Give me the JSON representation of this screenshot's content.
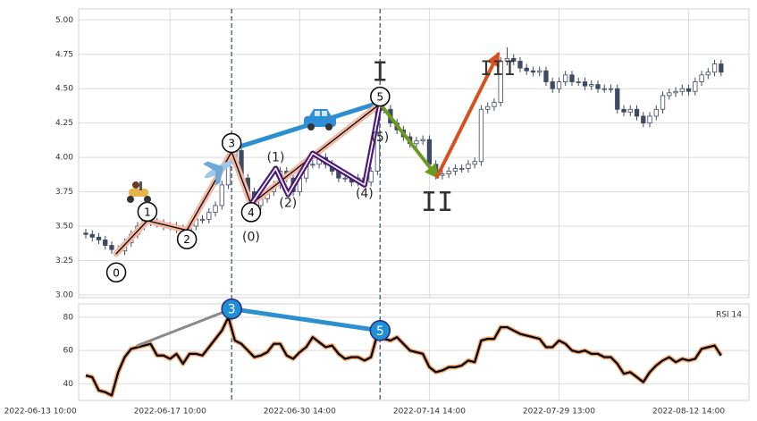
{
  "chart_data": {
    "type": "candlestick",
    "xlim": [
      -1.1,
      102.3
    ],
    "xticks": [
      {
        "value": -7,
        "label": "2022-06-13 10:00"
      },
      {
        "value": 13,
        "label": "2022-06-17 10:00"
      },
      {
        "value": 33,
        "label": "2022-06-30 14:00"
      },
      {
        "value": 53,
        "label": "2022-07-14 14:00"
      },
      {
        "value": 73,
        "label": "2022-07-29 13:00"
      },
      {
        "value": 93,
        "label": "2022-08-12 14:00"
      }
    ],
    "ylim": [
      2.98,
      5.08
    ],
    "yticks": [
      {
        "value": 3,
        "label": "3.00"
      },
      {
        "value": 3.25,
        "label": "3.25"
      },
      {
        "value": 3.5,
        "label": "3.50"
      },
      {
        "value": 3.75,
        "label": "3.75"
      },
      {
        "value": 4,
        "label": "4.00"
      },
      {
        "value": 4.25,
        "label": "4.25"
      },
      {
        "value": 4.5,
        "label": "4.50"
      },
      {
        "value": 4.75,
        "label": "4.75"
      },
      {
        "value": 5,
        "label": "5.00"
      }
    ],
    "grid": true,
    "up_color": "#ffffff",
    "down_color": "#3d4a63",
    "edge_color": "#3d4a63",
    "open": [
      3.45,
      3.44,
      3.42,
      3.4,
      3.36,
      3.33,
      3.32,
      3.38,
      3.44,
      3.5,
      3.54,
      3.53,
      3.52,
      3.5,
      3.5,
      3.48,
      3.47,
      3.5,
      3.55,
      3.55,
      3.6,
      3.65,
      3.8,
      3.95,
      4.05,
      3.85,
      3.75,
      3.65,
      3.7,
      3.75,
      3.8,
      3.9,
      3.85,
      3.75,
      3.85,
      3.95,
      3.95,
      4.0,
      3.95,
      3.9,
      3.85,
      3.85,
      3.82,
      3.85,
      3.82,
      3.9,
      4.35,
      4.35,
      4.25,
      4.2,
      4.15,
      4.1,
      4.12,
      4.13,
      3.95,
      3.87,
      3.88,
      3.9,
      3.92,
      3.92,
      3.95,
      3.97,
      4.35,
      4.37,
      4.4,
      4.7,
      4.72,
      4.7,
      4.65,
      4.63,
      4.62,
      4.63,
      4.55,
      4.5,
      4.55,
      4.6,
      4.55,
      4.55,
      4.52,
      4.53,
      4.5,
      4.5,
      4.5,
      4.35,
      4.33,
      4.35,
      4.3,
      4.25,
      4.3,
      4.35,
      4.45,
      4.47,
      4.48,
      4.5,
      4.48,
      4.55,
      4.6,
      4.62,
      4.68
    ],
    "high": [
      3.48,
      3.47,
      3.45,
      3.43,
      3.39,
      3.36,
      3.41,
      3.47,
      3.53,
      3.57,
      3.57,
      3.56,
      3.55,
      3.53,
      3.53,
      3.51,
      3.53,
      3.58,
      3.58,
      3.63,
      3.68,
      3.83,
      3.98,
      4.08,
      4.08,
      3.88,
      3.78,
      3.73,
      3.78,
      3.83,
      3.93,
      3.93,
      3.88,
      3.88,
      3.98,
      3.98,
      4.03,
      4.03,
      3.98,
      3.93,
      3.88,
      3.88,
      3.88,
      3.88,
      3.93,
      4.38,
      4.38,
      4.38,
      4.28,
      4.23,
      4.18,
      4.15,
      4.16,
      4.16,
      3.98,
      3.91,
      3.93,
      3.95,
      3.95,
      3.98,
      4.0,
      4.38,
      4.4,
      4.43,
      4.73,
      4.8,
      4.75,
      4.73,
      4.68,
      4.66,
      4.66,
      4.66,
      4.58,
      4.58,
      4.63,
      4.63,
      4.58,
      4.58,
      4.56,
      4.56,
      4.53,
      4.53,
      4.53,
      4.38,
      4.38,
      4.38,
      4.33,
      4.33,
      4.38,
      4.48,
      4.5,
      4.51,
      4.53,
      4.53,
      4.58,
      4.63,
      4.65,
      4.71,
      4.71
    ],
    "low": [
      3.41,
      3.39,
      3.37,
      3.33,
      3.3,
      3.29,
      3.29,
      3.35,
      3.41,
      3.47,
      3.5,
      3.49,
      3.47,
      3.47,
      3.45,
      3.44,
      3.44,
      3.47,
      3.52,
      3.52,
      3.57,
      3.62,
      3.77,
      3.92,
      3.82,
      3.72,
      3.62,
      3.62,
      3.67,
      3.72,
      3.77,
      3.82,
      3.72,
      3.72,
      3.82,
      3.92,
      3.92,
      3.92,
      3.87,
      3.82,
      3.82,
      3.79,
      3.79,
      3.79,
      3.79,
      3.87,
      4.32,
      4.22,
      4.17,
      4.12,
      4.07,
      4.07,
      4.09,
      3.92,
      3.84,
      3.84,
      3.85,
      3.87,
      3.89,
      3.89,
      3.92,
      3.94,
      4.32,
      4.34,
      4.37,
      4.67,
      4.67,
      4.62,
      4.6,
      4.59,
      4.59,
      4.52,
      4.47,
      4.47,
      4.52,
      4.52,
      4.52,
      4.49,
      4.49,
      4.47,
      4.47,
      4.47,
      4.32,
      4.3,
      4.3,
      4.27,
      4.22,
      4.22,
      4.27,
      4.32,
      4.42,
      4.44,
      4.45,
      4.45,
      4.45,
      4.52,
      4.57,
      4.59,
      4.59
    ],
    "close": [
      3.44,
      3.42,
      3.4,
      3.36,
      3.33,
      3.32,
      3.38,
      3.44,
      3.5,
      3.54,
      3.53,
      3.52,
      3.5,
      3.5,
      3.48,
      3.47,
      3.5,
      3.55,
      3.55,
      3.6,
      3.65,
      3.8,
      3.95,
      4.05,
      3.85,
      3.75,
      3.65,
      3.7,
      3.75,
      3.8,
      3.9,
      3.85,
      3.75,
      3.85,
      3.95,
      3.95,
      4.0,
      3.95,
      3.9,
      3.85,
      3.85,
      3.82,
      3.85,
      3.82,
      3.9,
      4.35,
      4.35,
      4.25,
      4.2,
      4.15,
      4.1,
      4.12,
      4.13,
      3.95,
      3.87,
      3.88,
      3.9,
      3.92,
      3.92,
      3.95,
      3.97,
      4.35,
      4.37,
      4.4,
      4.7,
      4.72,
      4.7,
      4.65,
      4.63,
      4.62,
      4.63,
      4.55,
      4.5,
      4.55,
      4.6,
      4.55,
      4.55,
      4.52,
      4.53,
      4.5,
      4.5,
      4.5,
      4.35,
      4.33,
      4.35,
      4.3,
      4.25,
      4.3,
      4.35,
      4.45,
      4.47,
      4.48,
      4.5,
      4.48,
      4.55,
      4.6,
      4.62,
      4.68,
      4.62
    ],
    "vlines": [
      22.5,
      45.4
    ],
    "vline_color": "#546c86",
    "waves": {
      "main": {
        "color": "#f4b8a2",
        "x": [
          4.7,
          9.5,
          15.6,
          22.5,
          25.5,
          45.4
        ],
        "y": [
          3.3,
          3.54,
          3.47,
          4.04,
          3.66,
          4.39
        ],
        "labels": [
          "0",
          "1",
          "2",
          "3",
          "4",
          "5"
        ]
      },
      "sub": {
        "color": "#4b1a7a",
        "x": [
          25.5,
          29.3,
          31.2,
          35,
          43,
          45.4
        ],
        "y": [
          3.66,
          3.92,
          3.73,
          4.03,
          3.8,
          4.39
        ],
        "labels": [
          "(0)",
          "(1)",
          "(2)",
          null,
          "(4)",
          "(5)"
        ]
      },
      "link": {
        "color": "#2b8fd0",
        "x": [
          22.5,
          45.4
        ],
        "y": [
          4.06,
          4.4
        ]
      },
      "wave_ii": {
        "color": "#6b9a1f",
        "x": [
          45.4,
          54.2
        ],
        "y": [
          4.39,
          3.86
        ]
      },
      "wave_iii": {
        "color": "#d9501e",
        "x": [
          54.2,
          63.6
        ],
        "y": [
          3.86,
          4.75
        ]
      },
      "degree": {
        "x": [
          45.4,
          54.2,
          63.6
        ],
        "y": [
          4.39,
          3.86,
          4.75
        ],
        "labels": [
          "I",
          "II",
          "III"
        ]
      }
    },
    "rsi": {
      "name": "RSI 14",
      "color": "#000000",
      "halo": "#f3a46b",
      "ylim": [
        30,
        88
      ],
      "yticks": [
        40,
        60,
        80
      ],
      "values": [
        45,
        44,
        36,
        35,
        33,
        47,
        56,
        61,
        62,
        63,
        64,
        57,
        57,
        55,
        58,
        52,
        58,
        58,
        57,
        62,
        67,
        72,
        80,
        66,
        64,
        60,
        56,
        57,
        59,
        64,
        64,
        57,
        55,
        59,
        62,
        68,
        65,
        62,
        63,
        58,
        55,
        56,
        56,
        54,
        56,
        70,
        67,
        66,
        68,
        64,
        60,
        59,
        58,
        50,
        47,
        48,
        50,
        50,
        51,
        54,
        53,
        66,
        67,
        67,
        74,
        74,
        72,
        70,
        69,
        68,
        67,
        62,
        62,
        66,
        64,
        60,
        59,
        60,
        58,
        58,
        56,
        56,
        52,
        46,
        47,
        44,
        41,
        47,
        51,
        54,
        56,
        53,
        55,
        54,
        55,
        61,
        62,
        63,
        57
      ],
      "marks": {
        "color": "#1f8fd6",
        "x": [
          22.5,
          45.4
        ],
        "y": [
          85,
          72
        ],
        "labels": [
          "3",
          "5"
        ]
      },
      "link": {
        "color": "#2b8fd0",
        "x": [
          22.5,
          45.4
        ],
        "y": [
          85,
          72
        ]
      },
      "trend": {
        "color": "#8a8a8a",
        "x": [
          8,
          22.5
        ],
        "y": [
          63,
          85
        ]
      }
    }
  }
}
